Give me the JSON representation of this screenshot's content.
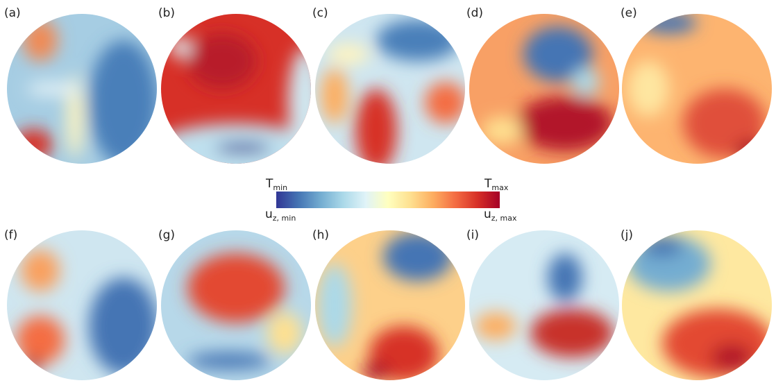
{
  "panels": [
    {
      "label": "(a)"
    },
    {
      "label": "(b)"
    },
    {
      "label": "(c)"
    },
    {
      "label": "(d)"
    },
    {
      "label": "(e)"
    },
    {
      "label": "(f)"
    },
    {
      "label": "(g)"
    },
    {
      "label": "(h)"
    },
    {
      "label": "(i)"
    },
    {
      "label": "(j)"
    }
  ],
  "colorbar": {
    "top_left": {
      "symbol": "T",
      "subscript": "min"
    },
    "top_right": {
      "symbol": "T",
      "subscript": "max"
    },
    "bottom_left": {
      "symbol": "u",
      "subscript": "z, min"
    },
    "bottom_right": {
      "symbol": "u",
      "subscript": "z, max"
    }
  }
}
